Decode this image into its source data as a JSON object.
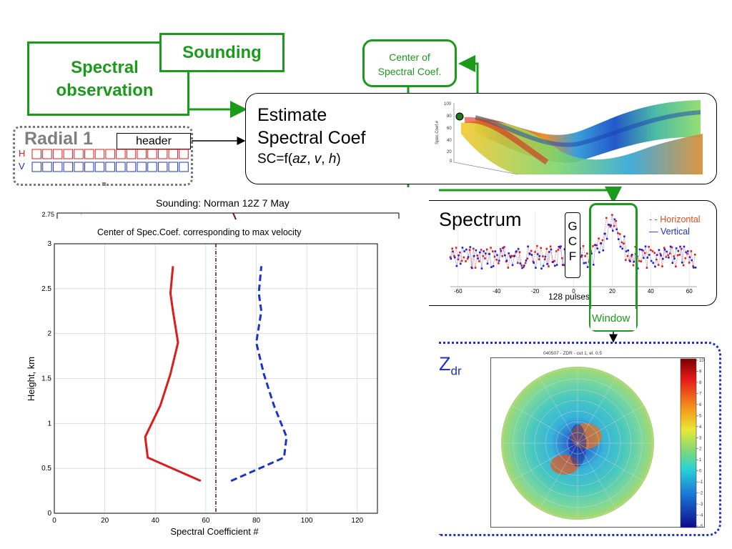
{
  "labels": {
    "sounding": "Sounding",
    "spectral_obs_1": "Spectral",
    "spectral_obs_2": "observation",
    "center_of_1": "Center of",
    "center_of_2": "Spectral Coef.",
    "estimate_1": "Estimate",
    "estimate_2": "Spectral Coef",
    "formula_prefix": "SC=f(",
    "formula_az": "az",
    "formula_sep1": ", ",
    "formula_v": "v",
    "formula_sep2": ", ",
    "formula_h": "h",
    "formula_suffix": ")",
    "radial": "Radial 1",
    "header": "header",
    "h": "H",
    "v": "V",
    "spectrum": "Spectrum",
    "gcf": [
      "G",
      "C",
      "F"
    ],
    "horizontal": "- - Horizontal",
    "vertical": "— Vertical",
    "pulses": "128 pulses",
    "window": "Window",
    "zdr_main": "Z",
    "zdr_sub": "dr",
    "ppi_title": "040507 - ZDR - cut 1, el. 0.5"
  },
  "colors": {
    "green": "#1a9b1a",
    "red": "#dd1c1c",
    "blue": "#1a33cc",
    "zdr_blue": "#1f2ed6"
  },
  "chart_data": [
    {
      "type": "line",
      "title": "Sounding: Norman 12Z 7 May",
      "ytick_top": "2.75"
    },
    {
      "type": "line",
      "title": "Center of Spec.Coef. corresponding to max velocity",
      "xlabel": "Spectral Coefficient #",
      "ylabel": "Height, km",
      "xlim": [
        0,
        128
      ],
      "ylim": [
        0,
        3
      ],
      "xticks": [
        0,
        20,
        40,
        60,
        80,
        100,
        120
      ],
      "yticks": [
        0,
        0.5,
        1,
        1.5,
        2,
        2.5,
        3
      ],
      "vline_x": 64,
      "grid": true,
      "series": [
        {
          "color": "#dd1c1c",
          "style": "solid",
          "x": [
            58,
            37,
            36,
            42,
            46,
            49,
            47,
            46,
            47
          ],
          "y": [
            0.36,
            0.62,
            0.85,
            1.2,
            1.55,
            1.9,
            2.25,
            2.45,
            2.75
          ]
        },
        {
          "color": "#1a33cc",
          "style": "dashed",
          "x": [
            70,
            91,
            92,
            87,
            83,
            80,
            82,
            81,
            82
          ],
          "y": [
            0.36,
            0.62,
            0.85,
            1.2,
            1.55,
            1.9,
            2.25,
            2.45,
            2.75
          ]
        }
      ]
    },
    {
      "type": "scatter",
      "xticks": [
        "-60",
        "-40",
        "-20",
        "0",
        "20",
        "40",
        "60"
      ],
      "xlim": [
        -64,
        64
      ]
    },
    {
      "type": "heatmap",
      "colorbar_ticks": [
        "10",
        "9",
        "8",
        "7",
        "6",
        "5",
        "4",
        "3",
        "2",
        "1",
        "0",
        "-1",
        "-2",
        "-3",
        "-4",
        "-5"
      ]
    }
  ]
}
